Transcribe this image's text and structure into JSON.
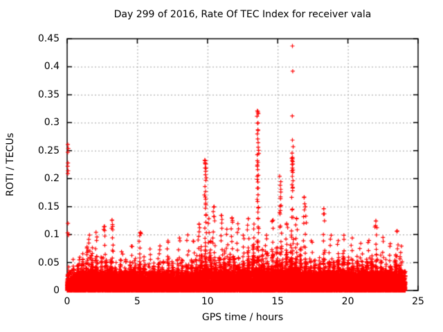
{
  "figure": {
    "background": "#ffffff",
    "text_color": "#000000",
    "border_color": "#000000",
    "grid_color": "#9c9c9c"
  },
  "chart_data": {
    "type": "scatter",
    "title": "Day 299 of 2016, Rate Of TEC Index for receiver vala",
    "xlabel": "GPS time / hours",
    "ylabel": "ROTI / TECUs",
    "xlim": [
      0,
      25
    ],
    "ylim": [
      0,
      0.45
    ],
    "xticks": [
      0,
      5,
      10,
      15,
      20,
      25
    ],
    "yticks": [
      0,
      0.05,
      0.1,
      0.15,
      0.2,
      0.25,
      0.3,
      0.35,
      0.4,
      0.45
    ],
    "grid": true,
    "legend": "none",
    "marker": "plus",
    "marker_color": "#ff0000",
    "series_name": "ROTI",
    "data_hours_range": [
      0,
      24.1
    ],
    "baseline_band_max": 0.016,
    "speckle_band_max": 0.034,
    "envelope_step_hours": 0.5,
    "envelope_max": [
      0.035,
      0.05,
      0.055,
      0.075,
      0.065,
      0.055,
      0.06,
      0.045,
      0.05,
      0.055,
      0.06,
      0.05,
      0.045,
      0.05,
      0.055,
      0.05,
      0.055,
      0.05,
      0.055,
      0.07,
      0.08,
      0.07,
      0.065,
      0.07,
      0.065,
      0.06,
      0.07,
      0.09,
      0.07,
      0.065,
      0.08,
      0.07,
      0.09,
      0.07,
      0.065,
      0.055,
      0.06,
      0.065,
      0.055,
      0.065,
      0.06,
      0.055,
      0.06,
      0.055,
      0.065,
      0.055,
      0.05,
      0.065,
      0.04
    ],
    "spike_columns": [
      [
        0.9,
        0.06,
        5
      ],
      [
        1.6,
        0.1,
        7
      ],
      [
        2.05,
        0.105,
        6
      ],
      [
        2.65,
        0.115,
        7
      ],
      [
        3.2,
        0.127,
        9
      ],
      [
        3.9,
        0.07,
        5
      ],
      [
        4.6,
        0.08,
        5
      ],
      [
        5.2,
        0.105,
        7
      ],
      [
        5.9,
        0.075,
        5
      ],
      [
        6.6,
        0.08,
        5
      ],
      [
        7.2,
        0.09,
        6
      ],
      [
        8.0,
        0.095,
        6
      ],
      [
        8.6,
        0.1,
        5
      ],
      [
        9.0,
        0.09,
        5
      ],
      [
        9.4,
        0.12,
        8
      ],
      [
        9.85,
        0.232,
        16
      ],
      [
        10.1,
        0.13,
        6
      ],
      [
        10.45,
        0.15,
        8
      ],
      [
        11.0,
        0.135,
        8
      ],
      [
        11.4,
        0.11,
        6
      ],
      [
        11.75,
        0.13,
        8
      ],
      [
        12.15,
        0.12,
        7
      ],
      [
        12.55,
        0.1,
        5
      ],
      [
        12.9,
        0.13,
        7
      ],
      [
        13.3,
        0.12,
        6
      ],
      [
        13.6,
        0.322,
        24
      ],
      [
        14.2,
        0.1,
        6
      ],
      [
        14.6,
        0.125,
        7
      ],
      [
        15.2,
        0.195,
        14
      ],
      [
        15.65,
        0.12,
        6
      ],
      [
        16.05,
        0.27,
        20
      ],
      [
        16.35,
        0.13,
        7
      ],
      [
        16.9,
        0.168,
        8
      ],
      [
        17.4,
        0.09,
        5
      ],
      [
        18.3,
        0.147,
        7
      ],
      [
        18.8,
        0.1,
        5
      ],
      [
        19.3,
        0.09,
        5
      ],
      [
        19.7,
        0.1,
        5
      ],
      [
        20.3,
        0.095,
        5
      ],
      [
        20.9,
        0.085,
        4
      ],
      [
        21.5,
        0.09,
        5
      ],
      [
        22.0,
        0.126,
        8
      ],
      [
        22.5,
        0.095,
        5
      ],
      [
        23.0,
        0.085,
        5
      ],
      [
        23.5,
        0.107,
        7
      ],
      [
        23.8,
        0.08,
        4
      ]
    ],
    "outlier_points": [
      [
        0.05,
        0.261
      ],
      [
        0.08,
        0.254
      ],
      [
        0.05,
        0.247
      ],
      [
        0.06,
        0.228
      ],
      [
        0.04,
        0.222
      ],
      [
        0.07,
        0.214
      ],
      [
        0.05,
        0.209
      ],
      [
        0.06,
        0.12
      ],
      [
        0.04,
        0.103
      ],
      [
        0.09,
        0.099
      ],
      [
        16.05,
        0.437
      ],
      [
        16.07,
        0.392
      ],
      [
        16.04,
        0.312
      ],
      [
        16.1,
        0.257
      ],
      [
        16.06,
        0.238
      ],
      [
        16.03,
        0.232
      ],
      [
        16.08,
        0.226
      ],
      [
        16.05,
        0.219
      ],
      [
        16.07,
        0.211
      ],
      [
        16.04,
        0.204
      ],
      [
        16.09,
        0.196
      ],
      [
        16.02,
        0.189
      ],
      [
        16.06,
        0.183
      ],
      [
        13.55,
        0.321
      ],
      [
        13.59,
        0.318
      ],
      [
        13.62,
        0.316
      ],
      [
        13.57,
        0.299
      ],
      [
        13.6,
        0.286
      ],
      [
        13.58,
        0.271
      ],
      [
        13.61,
        0.256
      ],
      [
        13.56,
        0.243
      ],
      [
        13.6,
        0.229
      ],
      [
        13.58,
        0.216
      ],
      [
        13.62,
        0.206
      ],
      [
        13.59,
        0.194
      ],
      [
        13.61,
        0.183
      ],
      [
        13.6,
        0.171
      ],
      [
        13.57,
        0.159
      ],
      [
        13.63,
        0.149
      ],
      [
        13.59,
        0.14
      ],
      [
        13.6,
        0.129
      ],
      [
        9.84,
        0.232
      ],
      [
        9.86,
        0.226
      ],
      [
        9.83,
        0.219
      ],
      [
        9.87,
        0.213
      ],
      [
        9.85,
        0.207
      ],
      [
        9.88,
        0.197
      ],
      [
        9.82,
        0.186
      ],
      [
        9.86,
        0.177
      ],
      [
        9.84,
        0.167
      ],
      [
        9.87,
        0.156
      ],
      [
        9.85,
        0.147
      ],
      [
        15.18,
        0.188
      ],
      [
        15.22,
        0.176
      ],
      [
        15.2,
        0.164
      ],
      [
        15.24,
        0.152
      ],
      [
        15.19,
        0.143
      ],
      [
        16.88,
        0.166
      ],
      [
        16.92,
        0.155
      ],
      [
        16.9,
        0.144
      ],
      [
        17.0,
        0.133
      ],
      [
        17.04,
        0.121
      ],
      [
        18.28,
        0.146
      ],
      [
        18.32,
        0.137
      ],
      [
        22.0,
        0.124
      ],
      [
        21.97,
        0.116
      ],
      [
        23.48,
        0.106
      ],
      [
        3.2,
        0.126
      ],
      [
        3.23,
        0.118
      ],
      [
        3.17,
        0.111
      ],
      [
        2.63,
        0.114
      ],
      [
        2.67,
        0.107
      ],
      [
        5.21,
        0.104
      ],
      [
        5.17,
        0.098
      ],
      [
        9.4,
        0.119
      ],
      [
        9.44,
        0.112
      ],
      [
        10.44,
        0.149
      ],
      [
        10.41,
        0.141
      ],
      [
        10.48,
        0.132
      ],
      [
        11.0,
        0.134
      ],
      [
        11.03,
        0.127
      ],
      [
        11.74,
        0.129
      ],
      [
        11.78,
        0.122
      ],
      [
        12.9,
        0.128
      ],
      [
        14.6,
        0.123
      ],
      [
        15.64,
        0.118
      ],
      [
        16.35,
        0.128
      ]
    ]
  }
}
